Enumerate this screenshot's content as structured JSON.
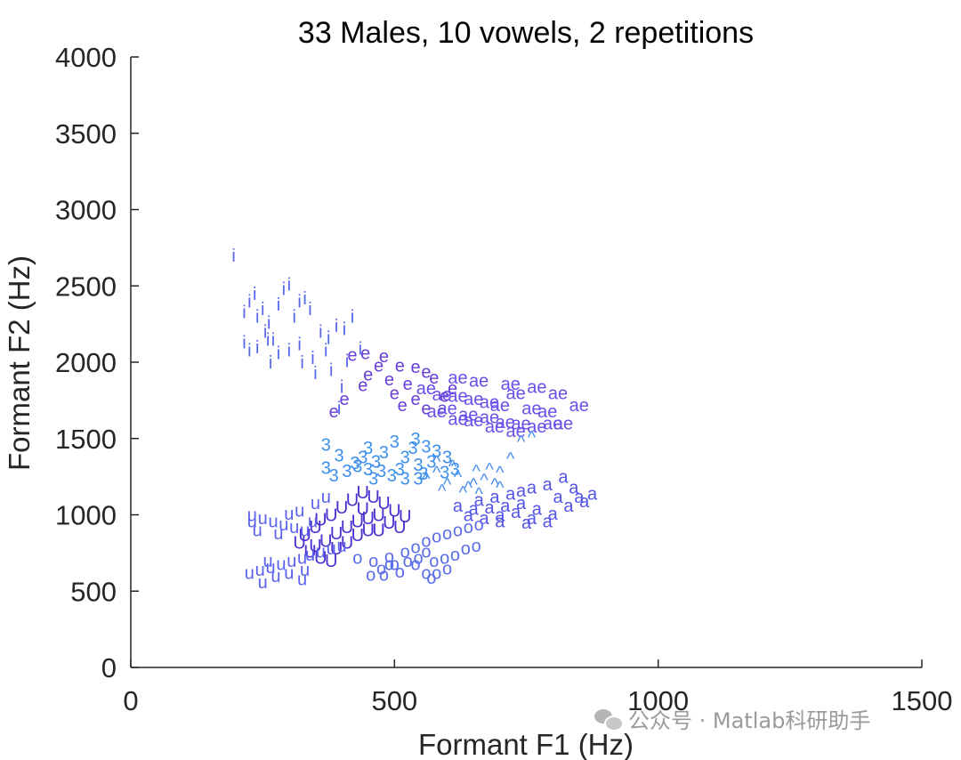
{
  "chart_data": {
    "type": "scatter",
    "title": "33 Males, 10 vowels, 2 repetitions",
    "xlabel": "Formant F1 (Hz)",
    "ylabel": "Formant F2 (Hz)",
    "xlim": [
      0,
      1500
    ],
    "ylim": [
      0,
      4000
    ],
    "xticks": [
      0,
      500,
      1000,
      1500
    ],
    "yticks": [
      0,
      500,
      1000,
      1500,
      2000,
      2500,
      3000,
      3500,
      4000
    ],
    "grid": false,
    "legend": "none",
    "series": [
      {
        "label": "i",
        "color": "#5466ee",
        "points": [
          [
            195,
            2700
          ],
          [
            215,
            2330
          ],
          [
            225,
            2400
          ],
          [
            235,
            2450
          ],
          [
            240,
            2300
          ],
          [
            250,
            2350
          ],
          [
            255,
            2200
          ],
          [
            262,
            2260
          ],
          [
            270,
            2150
          ],
          [
            280,
            2380
          ],
          [
            290,
            2480
          ],
          [
            300,
            2510
          ],
          [
            310,
            2300
          ],
          [
            320,
            2400
          ],
          [
            330,
            2420
          ],
          [
            340,
            2350
          ],
          [
            215,
            2130
          ],
          [
            225,
            2080
          ],
          [
            240,
            2100
          ],
          [
            260,
            2150
          ],
          [
            280,
            2060
          ],
          [
            300,
            2080
          ],
          [
            320,
            2120
          ],
          [
            345,
            2030
          ],
          [
            360,
            2200
          ],
          [
            375,
            2160
          ],
          [
            390,
            2240
          ],
          [
            405,
            2220
          ],
          [
            420,
            2300
          ],
          [
            380,
            1950
          ],
          [
            400,
            1840
          ],
          [
            370,
            2080
          ],
          [
            410,
            2010
          ],
          [
            395,
            1700
          ],
          [
            350,
            1930
          ],
          [
            325,
            2000
          ],
          [
            435,
            2090
          ],
          [
            265,
            2000
          ]
        ]
      },
      {
        "label": "e",
        "color": "#6a3fd6",
        "points": [
          [
            385,
            1680
          ],
          [
            405,
            1760
          ],
          [
            420,
            2050
          ],
          [
            445,
            2060
          ],
          [
            480,
            2040
          ],
          [
            510,
            1980
          ],
          [
            540,
            1970
          ],
          [
            560,
            1940
          ],
          [
            450,
            1920
          ],
          [
            490,
            1890
          ],
          [
            525,
            1860
          ],
          [
            575,
            1900
          ],
          [
            595,
            1780
          ],
          [
            610,
            1830
          ],
          [
            500,
            1800
          ],
          [
            540,
            1760
          ],
          [
            470,
            1980
          ],
          [
            440,
            1850
          ],
          [
            515,
            1720
          ],
          [
            560,
            1700
          ]
        ]
      },
      {
        "label": "ae",
        "color": "#6b4fe8",
        "points": [
          [
            560,
            1830
          ],
          [
            590,
            1790
          ],
          [
            620,
            1780
          ],
          [
            650,
            1760
          ],
          [
            680,
            1740
          ],
          [
            700,
            1720
          ],
          [
            730,
            1800
          ],
          [
            760,
            1700
          ],
          [
            790,
            1680
          ],
          [
            820,
            1600
          ],
          [
            620,
            1900
          ],
          [
            660,
            1880
          ],
          [
            720,
            1860
          ],
          [
            770,
            1840
          ],
          [
            810,
            1800
          ],
          [
            850,
            1720
          ],
          [
            600,
            1700
          ],
          [
            640,
            1660
          ],
          [
            680,
            1640
          ],
          [
            710,
            1610
          ],
          [
            740,
            1600
          ],
          [
            770,
            1580
          ],
          [
            800,
            1600
          ],
          [
            650,
            1620
          ],
          [
            690,
            1580
          ],
          [
            730,
            1550
          ],
          [
            580,
            1680
          ],
          [
            620,
            1630
          ]
        ]
      },
      {
        "label": "3",
        "color": "#3d8fee",
        "points": [
          [
            370,
            1460
          ],
          [
            395,
            1390
          ],
          [
            370,
            1310
          ],
          [
            385,
            1260
          ],
          [
            410,
            1290
          ],
          [
            425,
            1340
          ],
          [
            440,
            1380
          ],
          [
            450,
            1300
          ],
          [
            465,
            1350
          ],
          [
            480,
            1410
          ],
          [
            495,
            1260
          ],
          [
            510,
            1300
          ],
          [
            520,
            1380
          ],
          [
            535,
            1440
          ],
          [
            545,
            1330
          ],
          [
            555,
            1270
          ],
          [
            570,
            1350
          ],
          [
            580,
            1420
          ],
          [
            595,
            1280
          ],
          [
            545,
            1240
          ],
          [
            460,
            1240
          ],
          [
            500,
            1480
          ],
          [
            540,
            1500
          ],
          [
            430,
            1320
          ],
          [
            475,
            1290
          ],
          [
            520,
            1240
          ],
          [
            600,
            1380
          ],
          [
            615,
            1300
          ],
          [
            560,
            1450
          ],
          [
            450,
            1440
          ]
        ]
      },
      {
        "label": "^",
        "color": "#4a90ee",
        "points": [
          [
            560,
            1240
          ],
          [
            580,
            1280
          ],
          [
            600,
            1200
          ],
          [
            620,
            1250
          ],
          [
            640,
            1180
          ],
          [
            655,
            1290
          ],
          [
            670,
            1230
          ],
          [
            690,
            1200
          ],
          [
            700,
            1280
          ],
          [
            720,
            1370
          ],
          [
            740,
            1480
          ],
          [
            760,
            1510
          ],
          [
            590,
            1160
          ],
          [
            630,
            1150
          ],
          [
            660,
            1140
          ],
          [
            680,
            1300
          ],
          [
            610,
            1320
          ],
          [
            580,
            1350
          ],
          [
            700,
            1180
          ],
          [
            650,
            1200
          ]
        ]
      },
      {
        "label": "a",
        "color": "#5254e6",
        "points": [
          [
            660,
            1100
          ],
          [
            690,
            1120
          ],
          [
            720,
            1140
          ],
          [
            740,
            1160
          ],
          [
            760,
            1180
          ],
          [
            790,
            1200
          ],
          [
            820,
            1250
          ],
          [
            850,
            1120
          ],
          [
            875,
            1140
          ],
          [
            680,
            1050
          ],
          [
            710,
            1060
          ],
          [
            740,
            1080
          ],
          [
            770,
            1040
          ],
          [
            800,
            1010
          ],
          [
            830,
            1060
          ],
          [
            860,
            1090
          ],
          [
            640,
            1000
          ],
          [
            670,
            980
          ],
          [
            700,
            1000
          ],
          [
            730,
            1020
          ],
          [
            760,
            980
          ],
          [
            790,
            960
          ],
          [
            620,
            1060
          ],
          [
            650,
            1040
          ],
          [
            700,
            960
          ],
          [
            750,
            950
          ],
          [
            810,
            1120
          ],
          [
            840,
            1180
          ]
        ]
      },
      {
        "label": "o",
        "color": "#5b6de8",
        "points": [
          [
            455,
            610
          ],
          [
            475,
            650
          ],
          [
            500,
            680
          ],
          [
            525,
            700
          ],
          [
            545,
            720
          ],
          [
            560,
            760
          ],
          [
            430,
            720
          ],
          [
            460,
            700
          ],
          [
            490,
            730
          ],
          [
            520,
            760
          ],
          [
            540,
            790
          ],
          [
            560,
            830
          ],
          [
            580,
            860
          ],
          [
            600,
            880
          ],
          [
            620,
            900
          ],
          [
            640,
            920
          ],
          [
            660,
            940
          ],
          [
            575,
            700
          ],
          [
            595,
            720
          ],
          [
            615,
            740
          ],
          [
            635,
            780
          ],
          [
            655,
            800
          ],
          [
            480,
            610
          ],
          [
            510,
            630
          ],
          [
            540,
            680
          ],
          [
            560,
            620
          ],
          [
            580,
            620
          ],
          [
            600,
            650
          ],
          [
            570,
            590
          ],
          [
            490,
            680
          ]
        ]
      },
      {
        "label": "U",
        "color": "#4b2fd0",
        "points": [
          [
            330,
            870
          ],
          [
            350,
            920
          ],
          [
            360,
            970
          ],
          [
            380,
            1000
          ],
          [
            400,
            1050
          ],
          [
            420,
            1100
          ],
          [
            440,
            1150
          ],
          [
            460,
            1120
          ],
          [
            480,
            1080
          ],
          [
            500,
            1030
          ],
          [
            520,
            990
          ],
          [
            390,
            880
          ],
          [
            410,
            920
          ],
          [
            430,
            960
          ],
          [
            450,
            980
          ],
          [
            470,
            1000
          ],
          [
            490,
            950
          ],
          [
            510,
            920
          ],
          [
            350,
            800
          ],
          [
            370,
            830
          ],
          [
            390,
            780
          ],
          [
            410,
            820
          ],
          [
            430,
            870
          ],
          [
            450,
            900
          ],
          [
            320,
            820
          ],
          [
            340,
            760
          ],
          [
            360,
            720
          ],
          [
            380,
            700
          ],
          [
            470,
            900
          ],
          [
            440,
            1040
          ]
        ]
      },
      {
        "label": "u",
        "color": "#5a62ec",
        "points": [
          [
            225,
            620
          ],
          [
            245,
            640
          ],
          [
            265,
            660
          ],
          [
            285,
            680
          ],
          [
            305,
            700
          ],
          [
            325,
            720
          ],
          [
            340,
            740
          ],
          [
            360,
            760
          ],
          [
            380,
            780
          ],
          [
            400,
            800
          ],
          [
            230,
            1000
          ],
          [
            250,
            980
          ],
          [
            270,
            960
          ],
          [
            290,
            940
          ],
          [
            310,
            920
          ],
          [
            330,
            900
          ],
          [
            350,
            1080
          ],
          [
            370,
            1120
          ],
          [
            250,
            560
          ],
          [
            275,
            600
          ],
          [
            300,
            620
          ],
          [
            325,
            580
          ],
          [
            345,
            960
          ],
          [
            260,
            700
          ],
          [
            240,
            900
          ],
          [
            280,
            880
          ],
          [
            300,
            1010
          ],
          [
            320,
            1030
          ],
          [
            330,
            640
          ],
          [
            230,
            960
          ]
        ]
      }
    ]
  },
  "watermark": "公众号 · Matlab科研助手"
}
